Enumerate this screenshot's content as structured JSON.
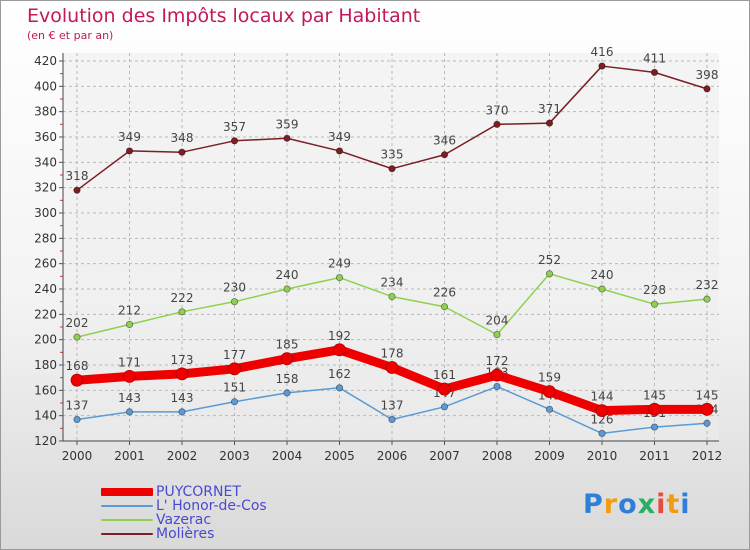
{
  "chart_data": {
    "type": "line",
    "title": "Evolution des Impôts locaux par Habitant",
    "subtitle": "(en € et par an)",
    "x": [
      "2000",
      "2001",
      "2002",
      "2003",
      "2004",
      "2005",
      "2006",
      "2007",
      "2008",
      "2009",
      "2010",
      "2011",
      "2012"
    ],
    "ylim": [
      120,
      420
    ],
    "yticks": [
      120,
      140,
      160,
      180,
      200,
      220,
      240,
      260,
      280,
      300,
      320,
      340,
      360,
      380,
      400,
      420
    ],
    "grid": true,
    "legend_position": "bottom-left",
    "series": [
      {
        "name": "Molières",
        "color": "#7a1f24",
        "values": [
          318,
          349,
          348,
          357,
          359,
          349,
          335,
          346,
          370,
          371,
          416,
          411,
          398
        ],
        "labels": [
          "318",
          "349",
          "348",
          "357",
          "359",
          "349",
          "335",
          "346",
          "370",
          "371",
          "416",
          "411",
          "398"
        ]
      },
      {
        "name": "Vazerac",
        "color": "#8fd14f",
        "values": [
          202,
          212,
          222,
          230,
          240,
          249,
          234,
          226,
          204,
          252,
          240,
          228,
          232
        ],
        "labels": [
          "202",
          "212",
          "222",
          "230",
          "240",
          "249",
          "234",
          "226",
          "204",
          "252",
          "240",
          "228",
          "232"
        ]
      },
      {
        "name": "L' Honor-de-Cos",
        "color": "#5b9bd5",
        "values": [
          137,
          143,
          143,
          151,
          158,
          162,
          137,
          147,
          163,
          145,
          126,
          131,
          134
        ],
        "labels": [
          "137",
          "143",
          "143",
          "151",
          "158",
          "162",
          "137",
          "147",
          "163",
          "145",
          "126",
          "131",
          "134"
        ]
      },
      {
        "name": "PUYCORNET",
        "color": "#ee0000",
        "values": [
          168,
          171,
          173,
          177,
          185,
          192,
          178,
          161,
          172,
          159,
          144,
          145,
          145
        ],
        "labels": [
          "168",
          "171",
          "173",
          "177",
          "185",
          "192",
          "178",
          "161",
          "172",
          "159",
          "144",
          "145",
          "145"
        ]
      }
    ]
  },
  "legend": {
    "items": [
      {
        "name": "PUYCORNET",
        "color": "#ee0000"
      },
      {
        "name": "L' Honor-de-Cos",
        "color": "#5b9bd5"
      },
      {
        "name": "Vazerac",
        "color": "#8fd14f"
      },
      {
        "name": "Molières",
        "color": "#7a1f24"
      }
    ]
  },
  "logo": {
    "letters": [
      "P",
      "r",
      "o",
      "x",
      "i",
      "t",
      "i"
    ],
    "colors": [
      "#2f7fd8",
      "#f39c12",
      "#2f7fd8",
      "#27ae60",
      "#e74c3c",
      "#f39c12",
      "#2f7fd8"
    ]
  }
}
